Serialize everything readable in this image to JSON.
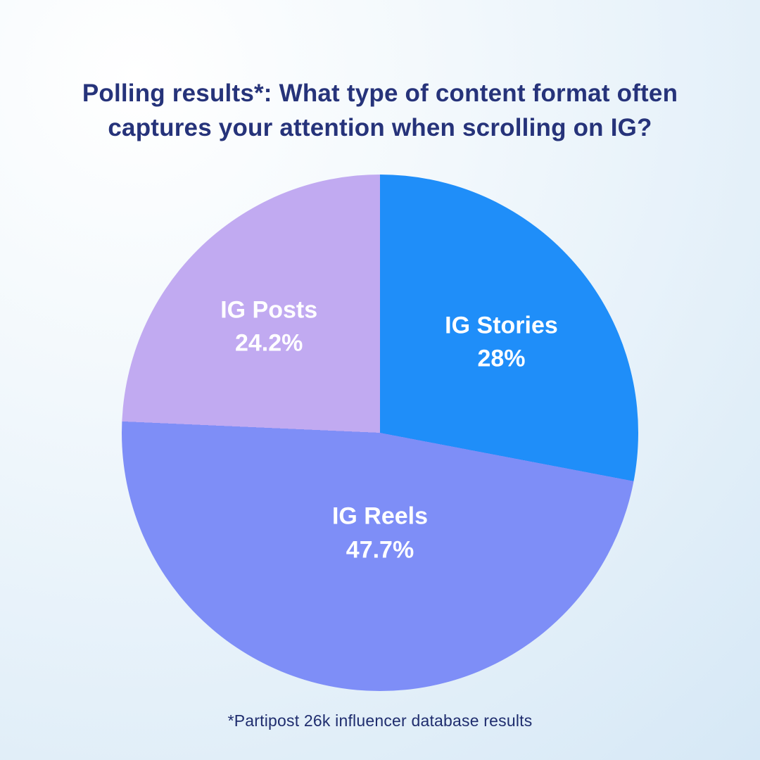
{
  "page": {
    "title": "Polling results*: What type of content format often captures your attention when scrolling on IG?",
    "footnote": "*Partipost 26k influencer database results"
  },
  "chart_data": {
    "type": "pie",
    "title": "Polling results*: What type of content format often captures your attention when scrolling on IG?",
    "footnote": "*Partipost 26k influencer database results",
    "start_angle_deg": 0,
    "direction": "clockwise",
    "legend": "labels-inside-slices",
    "slices": [
      {
        "label": "IG Stories",
        "value": 28,
        "display": "28%",
        "color": "#1f8ef9"
      },
      {
        "label": "IG Reels",
        "value": 47.7,
        "display": "47.7%",
        "color": "#7e8ef7"
      },
      {
        "label": "IG Posts",
        "value": 24.2,
        "display": "24.2%",
        "color": "#c1aaf1"
      }
    ],
    "label_text_color": "#ffffff",
    "title_color": "#26337a",
    "background": [
      "#ffffff",
      "#d6e8f6"
    ]
  }
}
